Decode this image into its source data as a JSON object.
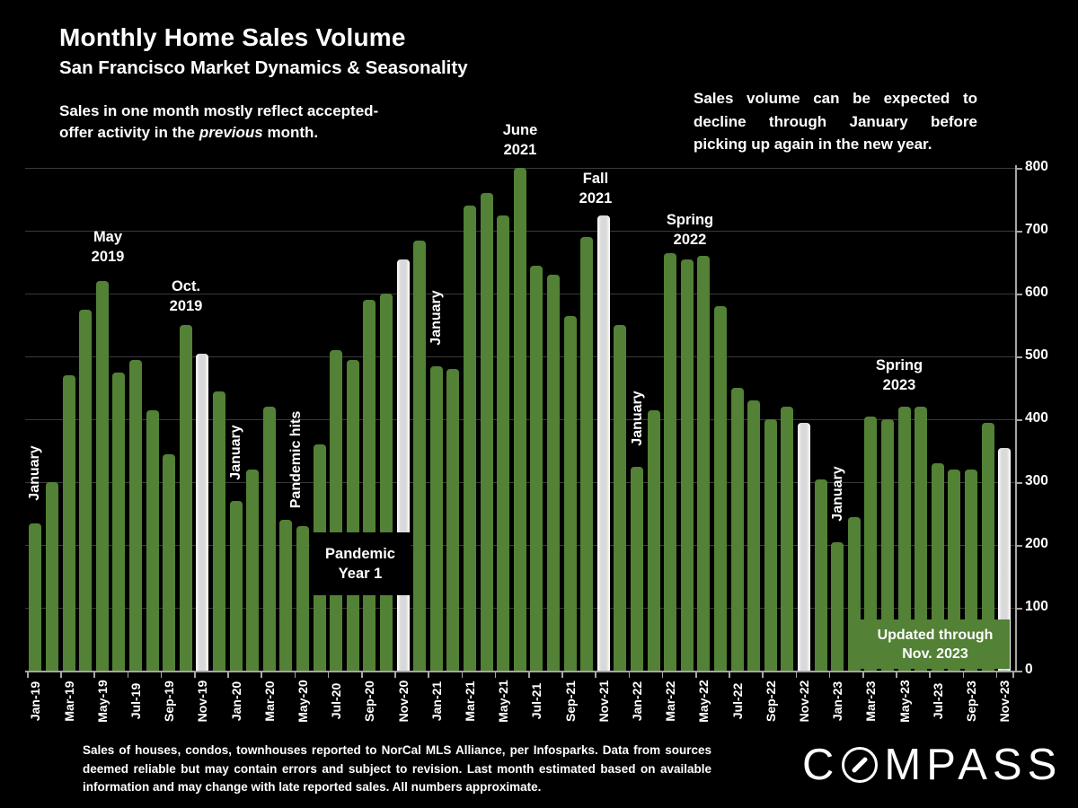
{
  "header": {
    "title": "Monthly Home Sales Volume",
    "subtitle": "San Francisco Market Dynamics & Seasonality",
    "note_line1": "Sales in one month mostly reflect accepted-",
    "note_line2_pre": "offer activity in the ",
    "note_line2_italic": "previous",
    "note_line2_post": " month."
  },
  "callout": "Sales volume can be expected to decline through January before picking up again in the new year.",
  "annotations": {
    "may_2019": "May\n2019",
    "oct_2019": "Oct.\n2019",
    "june_2021": "June\n2021",
    "fall_2021": "Fall\n2021",
    "spring_2022": "Spring\n2022",
    "spring_2023": "Spring\n2023",
    "january": "January",
    "pandemic_hits": "Pandemic hits",
    "pandemic_year1": "Pandemic\nYear 1",
    "updated_through": "Updated through\nNov. 2023"
  },
  "footer": {
    "disclaimer": "Sales of houses, condos, townhouses reported to NorCal MLS Alliance, per Infosparks. Data from sources deemed reliable but may contain errors and subject to revision. Last month estimated based on available information and may change with late reported sales. All numbers approximate.",
    "brand": "COMPASS",
    "brand_c": "C",
    "brand_rest": "MPASS"
  },
  "colors": {
    "background": "#000000",
    "bar": "#538135",
    "highlight_bar": "#d9d9d9",
    "text": "#ffffff",
    "gridline": "#3a3a3a",
    "axis": "#a6a6a6",
    "updated_box": "#538135"
  },
  "chart_data": {
    "type": "bar",
    "title": "Monthly Home Sales Volume",
    "subtitle": "San Francisco Market Dynamics & Seasonality",
    "x": [
      "Jan-19",
      "Feb-19",
      "Mar-19",
      "Apr-19",
      "May-19",
      "Jun-19",
      "Jul-19",
      "Aug-19",
      "Sep-19",
      "Oct-19",
      "Nov-19",
      "Dec-19",
      "Jan-20",
      "Feb-20",
      "Mar-20",
      "Apr-20",
      "May-20",
      "Jun-20",
      "Jul-20",
      "Aug-20",
      "Sep-20",
      "Oct-20",
      "Nov-20",
      "Dec-20",
      "Jan-21",
      "Feb-21",
      "Mar-21",
      "Apr-21",
      "May-21",
      "Jun-21",
      "Jul-21",
      "Aug-21",
      "Sep-21",
      "Oct-21",
      "Nov-21",
      "Dec-21",
      "Jan-22",
      "Feb-22",
      "Mar-22",
      "Apr-22",
      "May-22",
      "Jun-22",
      "Jul-22",
      "Aug-22",
      "Sep-22",
      "Oct-22",
      "Nov-22",
      "Dec-22",
      "Jan-23",
      "Feb-23",
      "Mar-23",
      "Apr-23",
      "May-23",
      "Jun-23",
      "Jul-23",
      "Aug-23",
      "Sep-23",
      "Oct-23",
      "Nov-23"
    ],
    "values": [
      235,
      300,
      470,
      575,
      620,
      475,
      495,
      415,
      345,
      550,
      505,
      445,
      270,
      320,
      420,
      240,
      230,
      360,
      510,
      495,
      590,
      600,
      655,
      685,
      485,
      480,
      740,
      760,
      725,
      800,
      645,
      630,
      565,
      690,
      725,
      550,
      325,
      415,
      665,
      655,
      660,
      580,
      450,
      430,
      400,
      420,
      395,
      305,
      205,
      245,
      405,
      400,
      420,
      420,
      330,
      320,
      320,
      395,
      355
    ],
    "highlight_months": [
      "Nov-19",
      "Nov-20",
      "Nov-21",
      "Nov-22",
      "Nov-23"
    ],
    "x_tick_labels": [
      "Jan-19",
      "Mar-19",
      "May-19",
      "Jul-19",
      "Sep-19",
      "Nov-19",
      "Jan-20",
      "Mar-20",
      "May-20",
      "Jul-20",
      "Sep-20",
      "Nov-20",
      "Jan-21",
      "Mar-21",
      "May-21",
      "Jul-21",
      "Sep-21",
      "Nov-21",
      "Jan-22",
      "Mar-22",
      "May-22",
      "Jul-22",
      "Sep-22",
      "Nov-22",
      "Jan-23",
      "Mar-23",
      "May-23",
      "Jul-23",
      "Sep-23",
      "Nov-23"
    ],
    "yticks": [
      0,
      100,
      200,
      300,
      400,
      500,
      600,
      700,
      800
    ],
    "ylim": [
      0,
      800
    ],
    "grid": true,
    "y_axis_position": "right"
  }
}
